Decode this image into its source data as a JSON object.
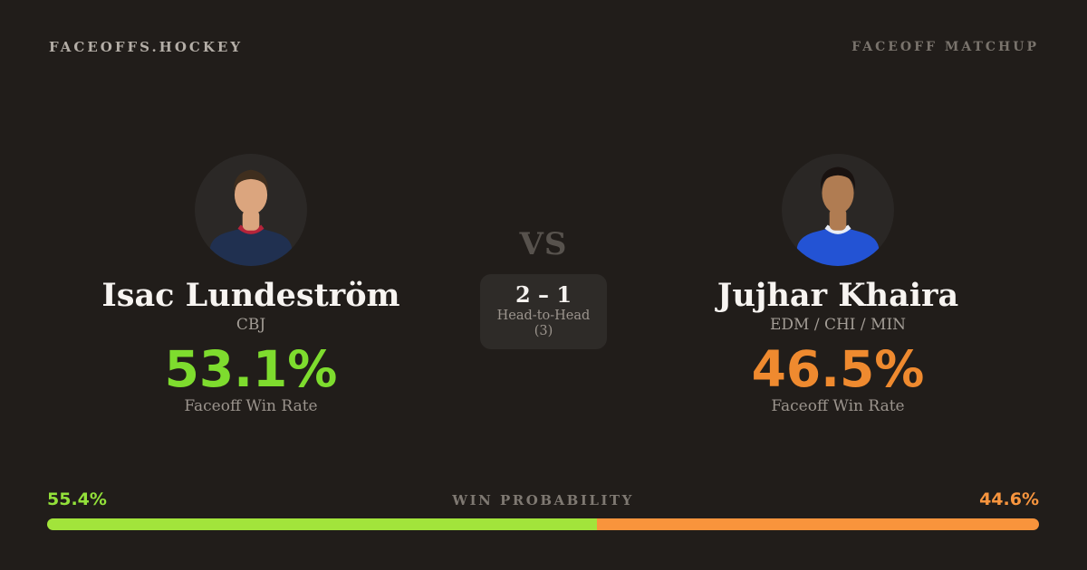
{
  "header": {
    "logo": "FACEOFFS.HOCKEY",
    "matchup_label": "FACEOFF MATCHUP"
  },
  "matchup": {
    "vs_label": "VS",
    "head_to_head": {
      "score": "2 – 1",
      "label": "Head-to-Head (3)"
    }
  },
  "players": [
    {
      "name": "Isac Lundeström",
      "teams": "CBJ",
      "win_rate": "53.1%",
      "win_rate_label": "Faceoff Win Rate",
      "accent_color": "#7edc2e",
      "avatar": {
        "bg": "#2b2826",
        "skin": "#dba57e",
        "hair": "#3f2e1e",
        "jersey": "#203050",
        "collar": "#b5243a"
      }
    },
    {
      "name": "Jujhar Khaira",
      "teams": "EDM / CHI / MIN",
      "win_rate": "46.5%",
      "win_rate_label": "Faceoff Win Rate",
      "accent_color": "#ef8a2f",
      "avatar": {
        "bg": "#2a2725",
        "skin": "#b07c52",
        "hair": "#191210",
        "jersey": "#2353d4",
        "collar": "#e9edf5"
      }
    }
  ],
  "win_probability": {
    "title": "WIN PROBABILITY",
    "left_label": "55.4%",
    "right_label": "44.6%",
    "left_value": 55.4,
    "right_value": 44.6,
    "left_label_color": "#93e13a",
    "right_label_color": "#f8953e",
    "bar_left_color": "#a2e43b",
    "bar_right_color": "#f9943c"
  },
  "colors": {
    "background": "#211d1a",
    "green_accent": "#7edc2e",
    "orange_accent": "#ef8a2f"
  }
}
